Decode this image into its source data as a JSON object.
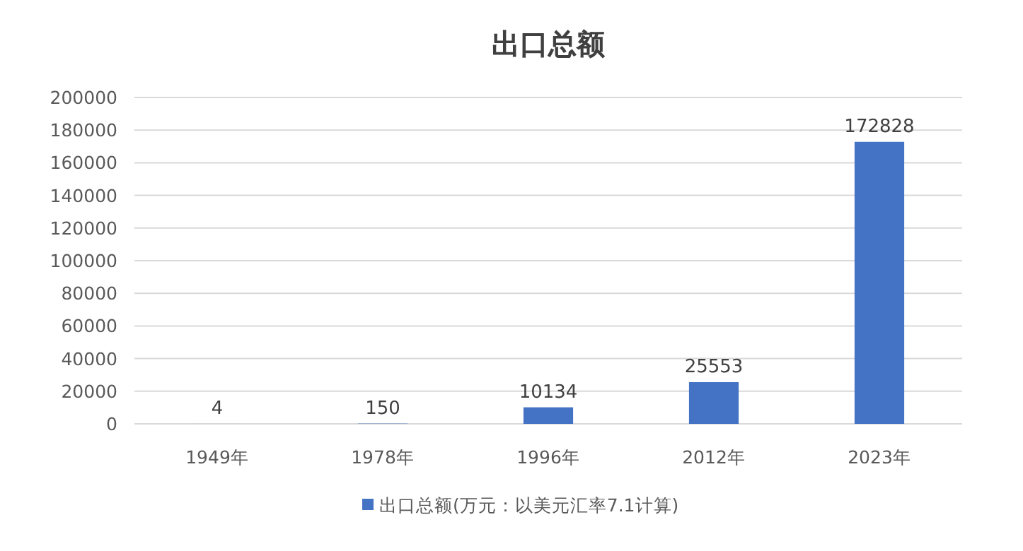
{
  "chart_data": {
    "type": "bar",
    "title": "出口总额",
    "categories": [
      "1949年",
      "1978年",
      "1996年",
      "2012年",
      "2023年"
    ],
    "series": [
      {
        "name": "出口总额(万元：以美元汇率7.1计算)",
        "color": "#4472c4",
        "values": [
          4,
          150,
          10134,
          25553,
          172828
        ]
      }
    ],
    "ylim": [
      0,
      200000
    ],
    "yticks": [
      0,
      20000,
      40000,
      60000,
      80000,
      100000,
      120000,
      140000,
      160000,
      180000,
      200000
    ],
    "grid": "y",
    "legend": "bottom",
    "data_labels": true
  }
}
